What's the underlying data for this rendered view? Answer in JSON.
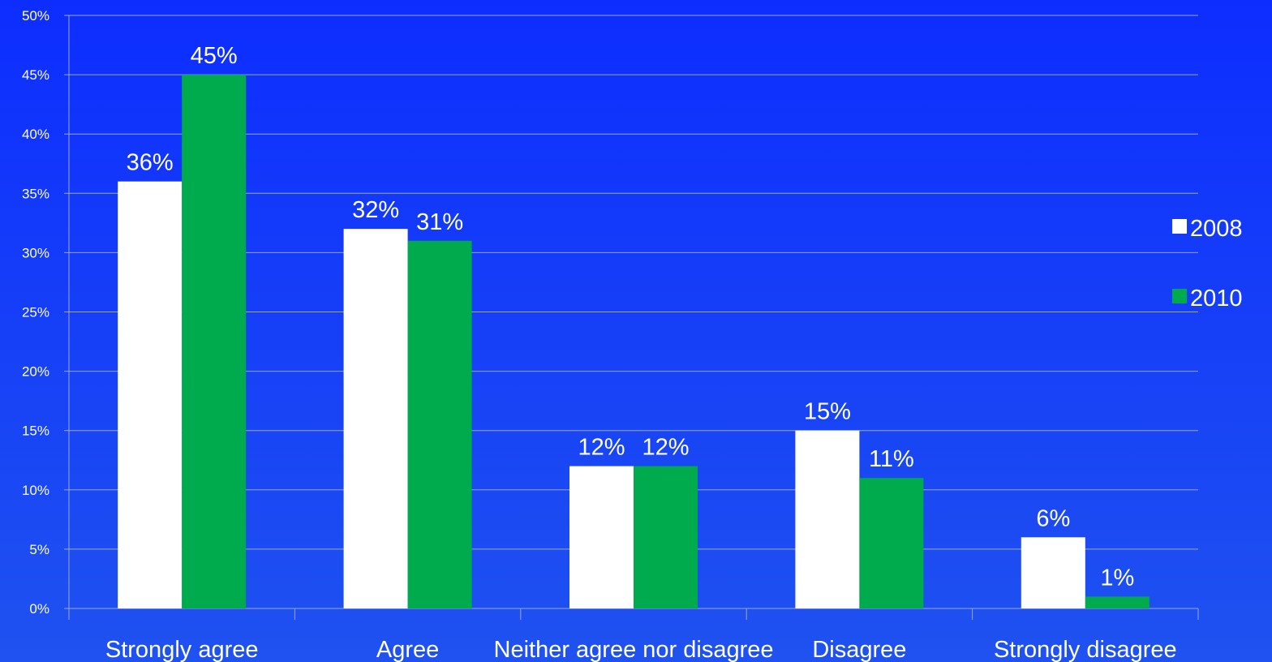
{
  "chart_data": {
    "type": "bar",
    "categories": [
      "Strongly agree",
      "Agree",
      "Neither agree nor disagree",
      "Disagree",
      "Strongly disagree"
    ],
    "series": [
      {
        "name": "2008",
        "values": [
          36,
          32,
          12,
          15,
          6
        ],
        "color": "#ffffff"
      },
      {
        "name": "2010",
        "values": [
          45,
          31,
          12,
          11,
          1
        ],
        "color": "#00ab4e"
      }
    ],
    "ylim": [
      0,
      50
    ],
    "yticks": [
      0,
      5,
      10,
      15,
      20,
      25,
      30,
      35,
      40,
      45,
      50
    ],
    "value_suffix": "%",
    "grid": true,
    "grid_color": "#9aa7c8",
    "axis_color": "#9aa7c8",
    "legend_position": "right"
  }
}
